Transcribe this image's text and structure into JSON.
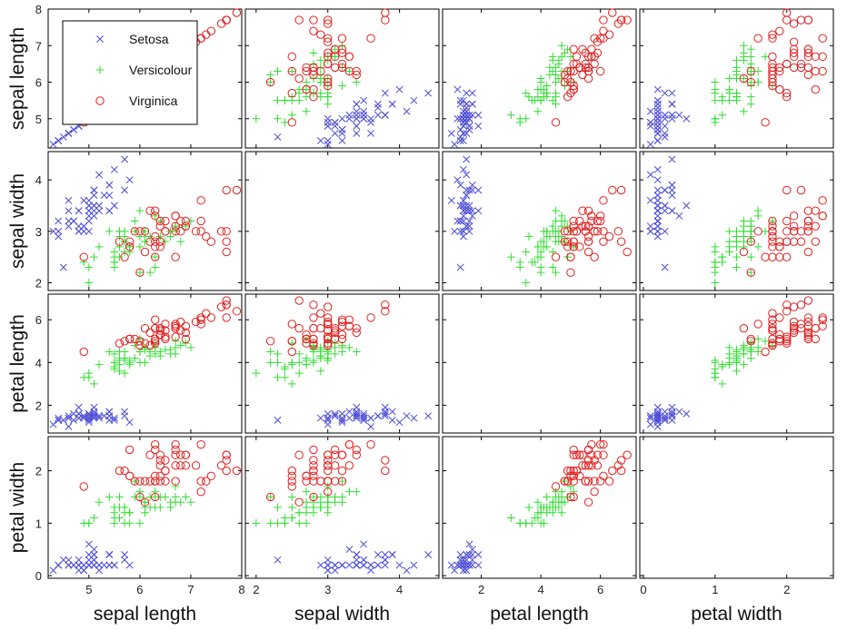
{
  "chart_data": {
    "type": "scatter-matrix",
    "variables": [
      "sepal length",
      "sepal width",
      "petal length",
      "petal width"
    ],
    "ranges": [
      [
        4.2,
        8.0
      ],
      [
        1.85,
        4.55
      ],
      [
        0.7,
        7.2
      ],
      [
        -0.05,
        2.65
      ]
    ],
    "ticks": [
      [
        5,
        6,
        7,
        8
      ],
      [
        2,
        3,
        4
      ],
      [
        2,
        4,
        6
      ],
      [
        0,
        1,
        2
      ]
    ],
    "x_tick_labels": [
      [
        "5",
        "6",
        "7",
        "8"
      ],
      [
        "2",
        "3",
        "4"
      ],
      [
        "2",
        "4",
        "6"
      ],
      [
        "0",
        "1",
        "2"
      ]
    ],
    "y_tick_labels": [
      [
        "5",
        "6",
        "7",
        "8"
      ],
      [
        "2",
        "3",
        "4"
      ],
      [
        "2",
        "4",
        "6"
      ],
      [
        "0",
        "1",
        "2"
      ]
    ],
    "blank_panels": [
      [
        1,
        1
      ],
      [
        2,
        2
      ],
      [
        3,
        3
      ]
    ],
    "legend": {
      "position": "inside top-left panel",
      "entries": [
        {
          "label": "Setosa",
          "marker": "x",
          "color": "#4b4bd6"
        },
        {
          "label": "Versicolour",
          "marker": "+",
          "color": "#33dd33"
        },
        {
          "label": "Virginica",
          "marker": "o",
          "color": "#e02020"
        }
      ]
    },
    "series": [
      {
        "name": "Setosa",
        "points": [
          [
            5.1,
            3.5,
            1.4,
            0.2
          ],
          [
            4.9,
            3.0,
            1.4,
            0.2
          ],
          [
            4.7,
            3.2,
            1.3,
            0.2
          ],
          [
            4.6,
            3.1,
            1.5,
            0.2
          ],
          [
            5.0,
            3.6,
            1.4,
            0.2
          ],
          [
            5.4,
            3.9,
            1.7,
            0.4
          ],
          [
            4.6,
            3.4,
            1.4,
            0.3
          ],
          [
            5.0,
            3.4,
            1.5,
            0.2
          ],
          [
            4.4,
            2.9,
            1.4,
            0.2
          ],
          [
            4.9,
            3.1,
            1.5,
            0.1
          ],
          [
            5.4,
            3.7,
            1.5,
            0.2
          ],
          [
            4.8,
            3.4,
            1.6,
            0.2
          ],
          [
            4.8,
            3.0,
            1.4,
            0.1
          ],
          [
            4.3,
            3.0,
            1.1,
            0.1
          ],
          [
            5.8,
            4.0,
            1.2,
            0.2
          ],
          [
            5.7,
            4.4,
            1.5,
            0.4
          ],
          [
            5.4,
            3.9,
            1.3,
            0.4
          ],
          [
            5.1,
            3.5,
            1.4,
            0.3
          ],
          [
            5.7,
            3.8,
            1.7,
            0.3
          ],
          [
            5.1,
            3.8,
            1.5,
            0.3
          ],
          [
            5.4,
            3.4,
            1.7,
            0.2
          ],
          [
            5.1,
            3.7,
            1.5,
            0.4
          ],
          [
            4.6,
            3.6,
            1.0,
            0.2
          ],
          [
            5.1,
            3.3,
            1.7,
            0.5
          ],
          [
            4.8,
            3.4,
            1.9,
            0.2
          ],
          [
            5.0,
            3.0,
            1.6,
            0.2
          ],
          [
            5.0,
            3.4,
            1.6,
            0.4
          ],
          [
            5.2,
            3.5,
            1.5,
            0.2
          ],
          [
            5.2,
            3.4,
            1.4,
            0.2
          ],
          [
            4.7,
            3.2,
            1.6,
            0.2
          ],
          [
            4.8,
            3.1,
            1.6,
            0.2
          ],
          [
            5.4,
            3.4,
            1.5,
            0.4
          ],
          [
            5.2,
            4.1,
            1.5,
            0.1
          ],
          [
            5.5,
            4.2,
            1.4,
            0.2
          ],
          [
            4.9,
            3.1,
            1.5,
            0.2
          ],
          [
            5.0,
            3.2,
            1.2,
            0.2
          ],
          [
            5.5,
            3.5,
            1.3,
            0.2
          ],
          [
            4.9,
            3.6,
            1.4,
            0.1
          ],
          [
            4.4,
            3.0,
            1.3,
            0.2
          ],
          [
            5.1,
            3.4,
            1.5,
            0.2
          ],
          [
            5.0,
            3.5,
            1.3,
            0.3
          ],
          [
            4.5,
            2.3,
            1.3,
            0.3
          ],
          [
            4.4,
            3.2,
            1.3,
            0.2
          ],
          [
            5.0,
            3.5,
            1.6,
            0.6
          ],
          [
            5.1,
            3.8,
            1.9,
            0.4
          ],
          [
            4.8,
            3.0,
            1.4,
            0.3
          ],
          [
            5.1,
            3.8,
            1.6,
            0.2
          ],
          [
            4.6,
            3.2,
            1.4,
            0.2
          ],
          [
            5.3,
            3.7,
            1.5,
            0.2
          ],
          [
            5.0,
            3.3,
            1.4,
            0.2
          ]
        ]
      },
      {
        "name": "Versicolour",
        "points": [
          [
            7.0,
            3.2,
            4.7,
            1.4
          ],
          [
            6.4,
            3.2,
            4.5,
            1.5
          ],
          [
            6.9,
            3.1,
            4.9,
            1.5
          ],
          [
            5.5,
            2.3,
            4.0,
            1.3
          ],
          [
            6.5,
            2.8,
            4.6,
            1.5
          ],
          [
            5.7,
            2.8,
            4.5,
            1.3
          ],
          [
            6.3,
            3.3,
            4.7,
            1.6
          ],
          [
            4.9,
            2.4,
            3.3,
            1.0
          ],
          [
            6.6,
            2.9,
            4.6,
            1.3
          ],
          [
            5.2,
            2.7,
            3.9,
            1.4
          ],
          [
            5.0,
            2.0,
            3.5,
            1.0
          ],
          [
            5.9,
            3.0,
            4.2,
            1.5
          ],
          [
            6.0,
            2.2,
            4.0,
            1.0
          ],
          [
            6.1,
            2.9,
            4.7,
            1.4
          ],
          [
            5.6,
            2.9,
            3.6,
            1.3
          ],
          [
            6.7,
            3.1,
            4.4,
            1.4
          ],
          [
            5.6,
            3.0,
            4.5,
            1.5
          ],
          [
            5.8,
            2.7,
            4.1,
            1.0
          ],
          [
            6.2,
            2.2,
            4.5,
            1.5
          ],
          [
            5.6,
            2.5,
            3.9,
            1.1
          ],
          [
            5.9,
            3.2,
            4.8,
            1.8
          ],
          [
            6.1,
            2.8,
            4.0,
            1.3
          ],
          [
            6.3,
            2.5,
            4.9,
            1.5
          ],
          [
            6.1,
            2.8,
            4.7,
            1.2
          ],
          [
            6.4,
            2.9,
            4.3,
            1.3
          ],
          [
            6.6,
            3.0,
            4.4,
            1.4
          ],
          [
            6.8,
            2.8,
            4.8,
            1.4
          ],
          [
            6.7,
            3.0,
            5.0,
            1.7
          ],
          [
            6.0,
            2.9,
            4.5,
            1.5
          ],
          [
            5.7,
            2.6,
            3.5,
            1.0
          ],
          [
            5.5,
            2.4,
            3.8,
            1.1
          ],
          [
            5.5,
            2.4,
            3.7,
            1.0
          ],
          [
            5.8,
            2.7,
            3.9,
            1.2
          ],
          [
            6.0,
            2.7,
            5.1,
            1.6
          ],
          [
            5.4,
            3.0,
            4.5,
            1.5
          ],
          [
            6.0,
            3.4,
            4.5,
            1.6
          ],
          [
            6.7,
            3.1,
            4.7,
            1.5
          ],
          [
            6.3,
            2.3,
            4.4,
            1.3
          ],
          [
            5.6,
            3.0,
            4.1,
            1.3
          ],
          [
            5.5,
            2.5,
            4.0,
            1.3
          ],
          [
            5.5,
            2.6,
            4.4,
            1.2
          ],
          [
            6.1,
            3.0,
            4.6,
            1.4
          ],
          [
            5.8,
            2.6,
            4.0,
            1.2
          ],
          [
            5.0,
            2.3,
            3.3,
            1.0
          ],
          [
            5.6,
            2.7,
            4.2,
            1.3
          ],
          [
            5.7,
            3.0,
            4.2,
            1.2
          ],
          [
            5.7,
            2.9,
            4.2,
            1.3
          ],
          [
            6.2,
            2.9,
            4.3,
            1.3
          ],
          [
            5.1,
            2.5,
            3.0,
            1.1
          ],
          [
            5.7,
            2.8,
            4.1,
            1.3
          ]
        ]
      },
      {
        "name": "Virginica",
        "points": [
          [
            6.3,
            3.3,
            6.0,
            2.5
          ],
          [
            5.8,
            2.7,
            5.1,
            1.9
          ],
          [
            7.1,
            3.0,
            5.9,
            2.1
          ],
          [
            6.3,
            2.9,
            5.6,
            1.8
          ],
          [
            6.5,
            3.0,
            5.8,
            2.2
          ],
          [
            7.6,
            3.0,
            6.6,
            2.1
          ],
          [
            4.9,
            2.5,
            4.5,
            1.7
          ],
          [
            7.3,
            2.9,
            6.3,
            1.8
          ],
          [
            6.7,
            2.5,
            5.8,
            1.8
          ],
          [
            7.2,
            3.6,
            6.1,
            2.5
          ],
          [
            6.5,
            3.2,
            5.1,
            2.0
          ],
          [
            6.4,
            2.7,
            5.3,
            1.9
          ],
          [
            6.8,
            3.0,
            5.5,
            2.1
          ],
          [
            5.7,
            2.5,
            5.0,
            2.0
          ],
          [
            5.8,
            2.8,
            5.1,
            2.4
          ],
          [
            6.4,
            3.2,
            5.3,
            2.3
          ],
          [
            6.5,
            3.0,
            5.5,
            1.8
          ],
          [
            7.7,
            3.8,
            6.7,
            2.2
          ],
          [
            7.7,
            2.6,
            6.9,
            2.3
          ],
          [
            6.0,
            2.2,
            5.0,
            1.5
          ],
          [
            6.9,
            3.2,
            5.7,
            2.3
          ],
          [
            5.6,
            2.8,
            4.9,
            2.0
          ],
          [
            7.7,
            2.8,
            6.7,
            2.0
          ],
          [
            6.3,
            2.7,
            4.9,
            1.8
          ],
          [
            6.7,
            3.3,
            5.7,
            2.1
          ],
          [
            7.2,
            3.2,
            6.0,
            1.8
          ],
          [
            6.2,
            2.8,
            4.8,
            1.8
          ],
          [
            6.1,
            3.0,
            4.9,
            1.8
          ],
          [
            6.4,
            2.8,
            5.6,
            2.1
          ],
          [
            7.2,
            3.0,
            5.8,
            1.6
          ],
          [
            7.4,
            2.8,
            6.1,
            1.9
          ],
          [
            7.9,
            3.8,
            6.4,
            2.0
          ],
          [
            6.4,
            2.8,
            5.6,
            2.2
          ],
          [
            6.3,
            2.8,
            5.1,
            1.5
          ],
          [
            6.1,
            2.6,
            5.6,
            1.4
          ],
          [
            7.7,
            3.0,
            6.1,
            2.3
          ],
          [
            6.3,
            3.4,
            5.6,
            2.4
          ],
          [
            6.4,
            3.1,
            5.5,
            1.8
          ],
          [
            6.0,
            3.0,
            4.8,
            1.8
          ],
          [
            6.9,
            3.1,
            5.4,
            2.1
          ],
          [
            6.7,
            3.1,
            5.6,
            2.4
          ],
          [
            6.9,
            3.1,
            5.1,
            2.3
          ],
          [
            5.8,
            2.7,
            5.1,
            1.9
          ],
          [
            6.8,
            3.2,
            5.9,
            2.3
          ],
          [
            6.7,
            3.3,
            5.7,
            2.5
          ],
          [
            6.7,
            3.0,
            5.2,
            2.3
          ],
          [
            6.3,
            2.5,
            5.0,
            1.9
          ],
          [
            6.5,
            3.0,
            5.2,
            2.0
          ],
          [
            6.2,
            3.4,
            5.4,
            2.3
          ],
          [
            5.9,
            3.0,
            5.1,
            1.8
          ]
        ]
      }
    ]
  }
}
